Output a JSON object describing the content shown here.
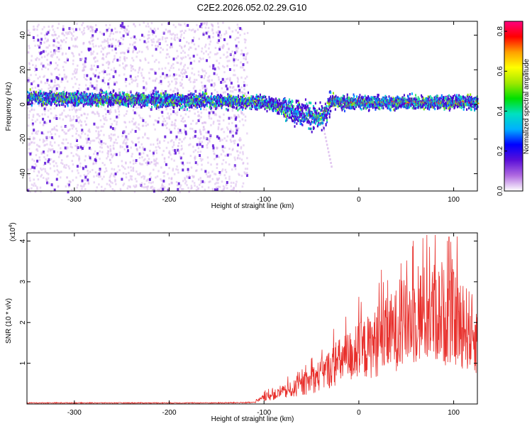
{
  "figure": {
    "title": "C2E2.2026.052.02.29.G10"
  },
  "colors": {
    "snr_line": "#e8302c",
    "spectro_low": "#d9b8ec",
    "spectro_mid": "#5a0fd8",
    "spectro_band": "#2ad9b0",
    "spectro_high": "#ff3030"
  },
  "chart_data": [
    {
      "type": "heatmap",
      "name": "spectrogram",
      "xlabel": "Height of straight line (km)",
      "ylabel": "Frequency (Hz)",
      "xlim": [
        -350,
        125
      ],
      "ylim": [
        -50,
        48
      ],
      "xticks": [
        -300,
        -200,
        -100,
        0,
        100
      ],
      "yticks": [
        -40,
        -20,
        0,
        20,
        40
      ],
      "band_center": [
        [
          -350,
          4
        ],
        [
          -300,
          3
        ],
        [
          -250,
          3
        ],
        [
          -200,
          2
        ],
        [
          -150,
          2
        ],
        [
          -100,
          1
        ],
        [
          -80,
          -2
        ],
        [
          -70,
          -4
        ],
        [
          -60,
          -5
        ],
        [
          -50,
          -7
        ],
        [
          -40,
          -8
        ],
        [
          -35,
          -6
        ],
        [
          -30,
          2
        ],
        [
          -20,
          1
        ],
        [
          0,
          1
        ],
        [
          50,
          1
        ],
        [
          100,
          1
        ],
        [
          125,
          1
        ]
      ],
      "notes": "Diffuse noise scattered over all frequencies for heights below about -120 km; narrow high-amplitude band near 0 Hz across the full range; weak streak from about -40 to -30 km descending to about -37 Hz.",
      "colorbar": {
        "label": "Normalized spectral amplitude",
        "range": [
          0,
          0.85
        ],
        "ticks": [
          "0.0",
          "0.2",
          "0.4",
          "0.6",
          "0.8"
        ],
        "tick_values": [
          0.0,
          0.2,
          0.4,
          0.6,
          0.8
        ],
        "colors": [
          "#ffffff",
          "#b06ae0",
          "#5a0fd8",
          "#0000ff",
          "#00b0ff",
          "#00e0c0",
          "#00e000",
          "#a0e800",
          "#ffff00",
          "#ffa000",
          "#ff0000",
          "#ff0080"
        ]
      }
    },
    {
      "type": "line",
      "name": "snr",
      "xlabel": "Height of straight line (km)",
      "ylabel": "SNR (10 * v/v)",
      "multiplier_base": "(x10",
      "multiplier_exp": "4",
      "multiplier_close": ")",
      "xlim": [
        -350,
        125
      ],
      "ylim": [
        0,
        4.2
      ],
      "xticks": [
        -300,
        -200,
        -100,
        0,
        100
      ],
      "yticks": [
        1,
        2,
        3,
        4
      ],
      "envelope": [
        [
          -350,
          0.03
        ],
        [
          -150,
          0.03
        ],
        [
          -110,
          0.04
        ],
        [
          -100,
          0.2
        ],
        [
          -80,
          0.35
        ],
        [
          -60,
          0.55
        ],
        [
          -40,
          0.9
        ],
        [
          -20,
          1.3
        ],
        [
          0,
          1.6
        ],
        [
          20,
          1.9
        ],
        [
          40,
          2.3
        ],
        [
          60,
          2.7
        ],
        [
          80,
          2.8
        ],
        [
          100,
          2.6
        ],
        [
          115,
          2.3
        ],
        [
          125,
          2.0
        ]
      ],
      "peak_max": 4.1,
      "peak_at": 95
    }
  ]
}
